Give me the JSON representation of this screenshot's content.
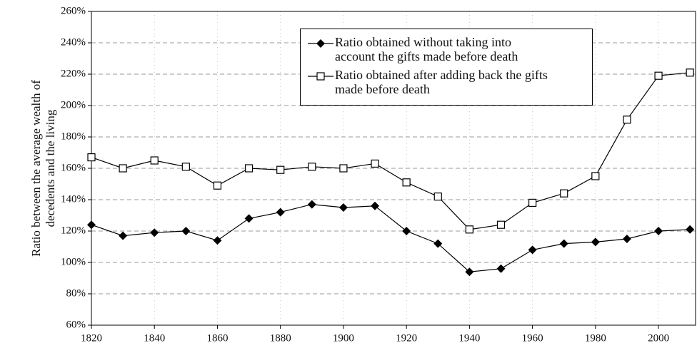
{
  "chart_data": {
    "type": "line",
    "ylabel": [
      "Ratio between the average wealth of",
      "decedents and the living"
    ],
    "x": [
      1820,
      1830,
      1840,
      1850,
      1860,
      1870,
      1880,
      1890,
      1900,
      1910,
      1920,
      1930,
      1940,
      1950,
      1960,
      1970,
      1980,
      1990,
      2000,
      2010
    ],
    "series": [
      {
        "name": "Ratio obtained without taking into account the gifts made before death",
        "color": "#000000",
        "marker": "filled-diamond",
        "values": [
          124,
          117,
          119,
          120,
          114,
          128,
          132,
          137,
          135,
          136,
          120,
          112,
          94,
          96,
          108,
          112,
          113,
          115,
          120,
          121
        ]
      },
      {
        "name": "Ratio obtained after adding back the gifts made before death",
        "color": "#000000",
        "marker": "open-square",
        "values": [
          167,
          160,
          165,
          161,
          149,
          160,
          159,
          161,
          160,
          163,
          151,
          142,
          121,
          124,
          138,
          144,
          155,
          191,
          219,
          221
        ]
      }
    ],
    "xlim": [
      1820,
      2012
    ],
    "xticks": [
      1820,
      1840,
      1860,
      1880,
      1900,
      1920,
      1940,
      1960,
      1980,
      2000
    ],
    "ylim": [
      60,
      260
    ],
    "yticks": [
      {
        "value": 60,
        "label": "60%"
      },
      {
        "value": 80,
        "label": "80%"
      },
      {
        "value": 100,
        "label": "100%"
      },
      {
        "value": 120,
        "label": "120%"
      },
      {
        "value": 140,
        "label": "140%"
      },
      {
        "value": 160,
        "label": "160%"
      },
      {
        "value": 180,
        "label": "180%"
      },
      {
        "value": 200,
        "label": "200%"
      },
      {
        "value": 220,
        "label": "220%"
      },
      {
        "value": 240,
        "label": "240%"
      },
      {
        "value": 260,
        "label": "260%"
      }
    ],
    "grid": true
  }
}
